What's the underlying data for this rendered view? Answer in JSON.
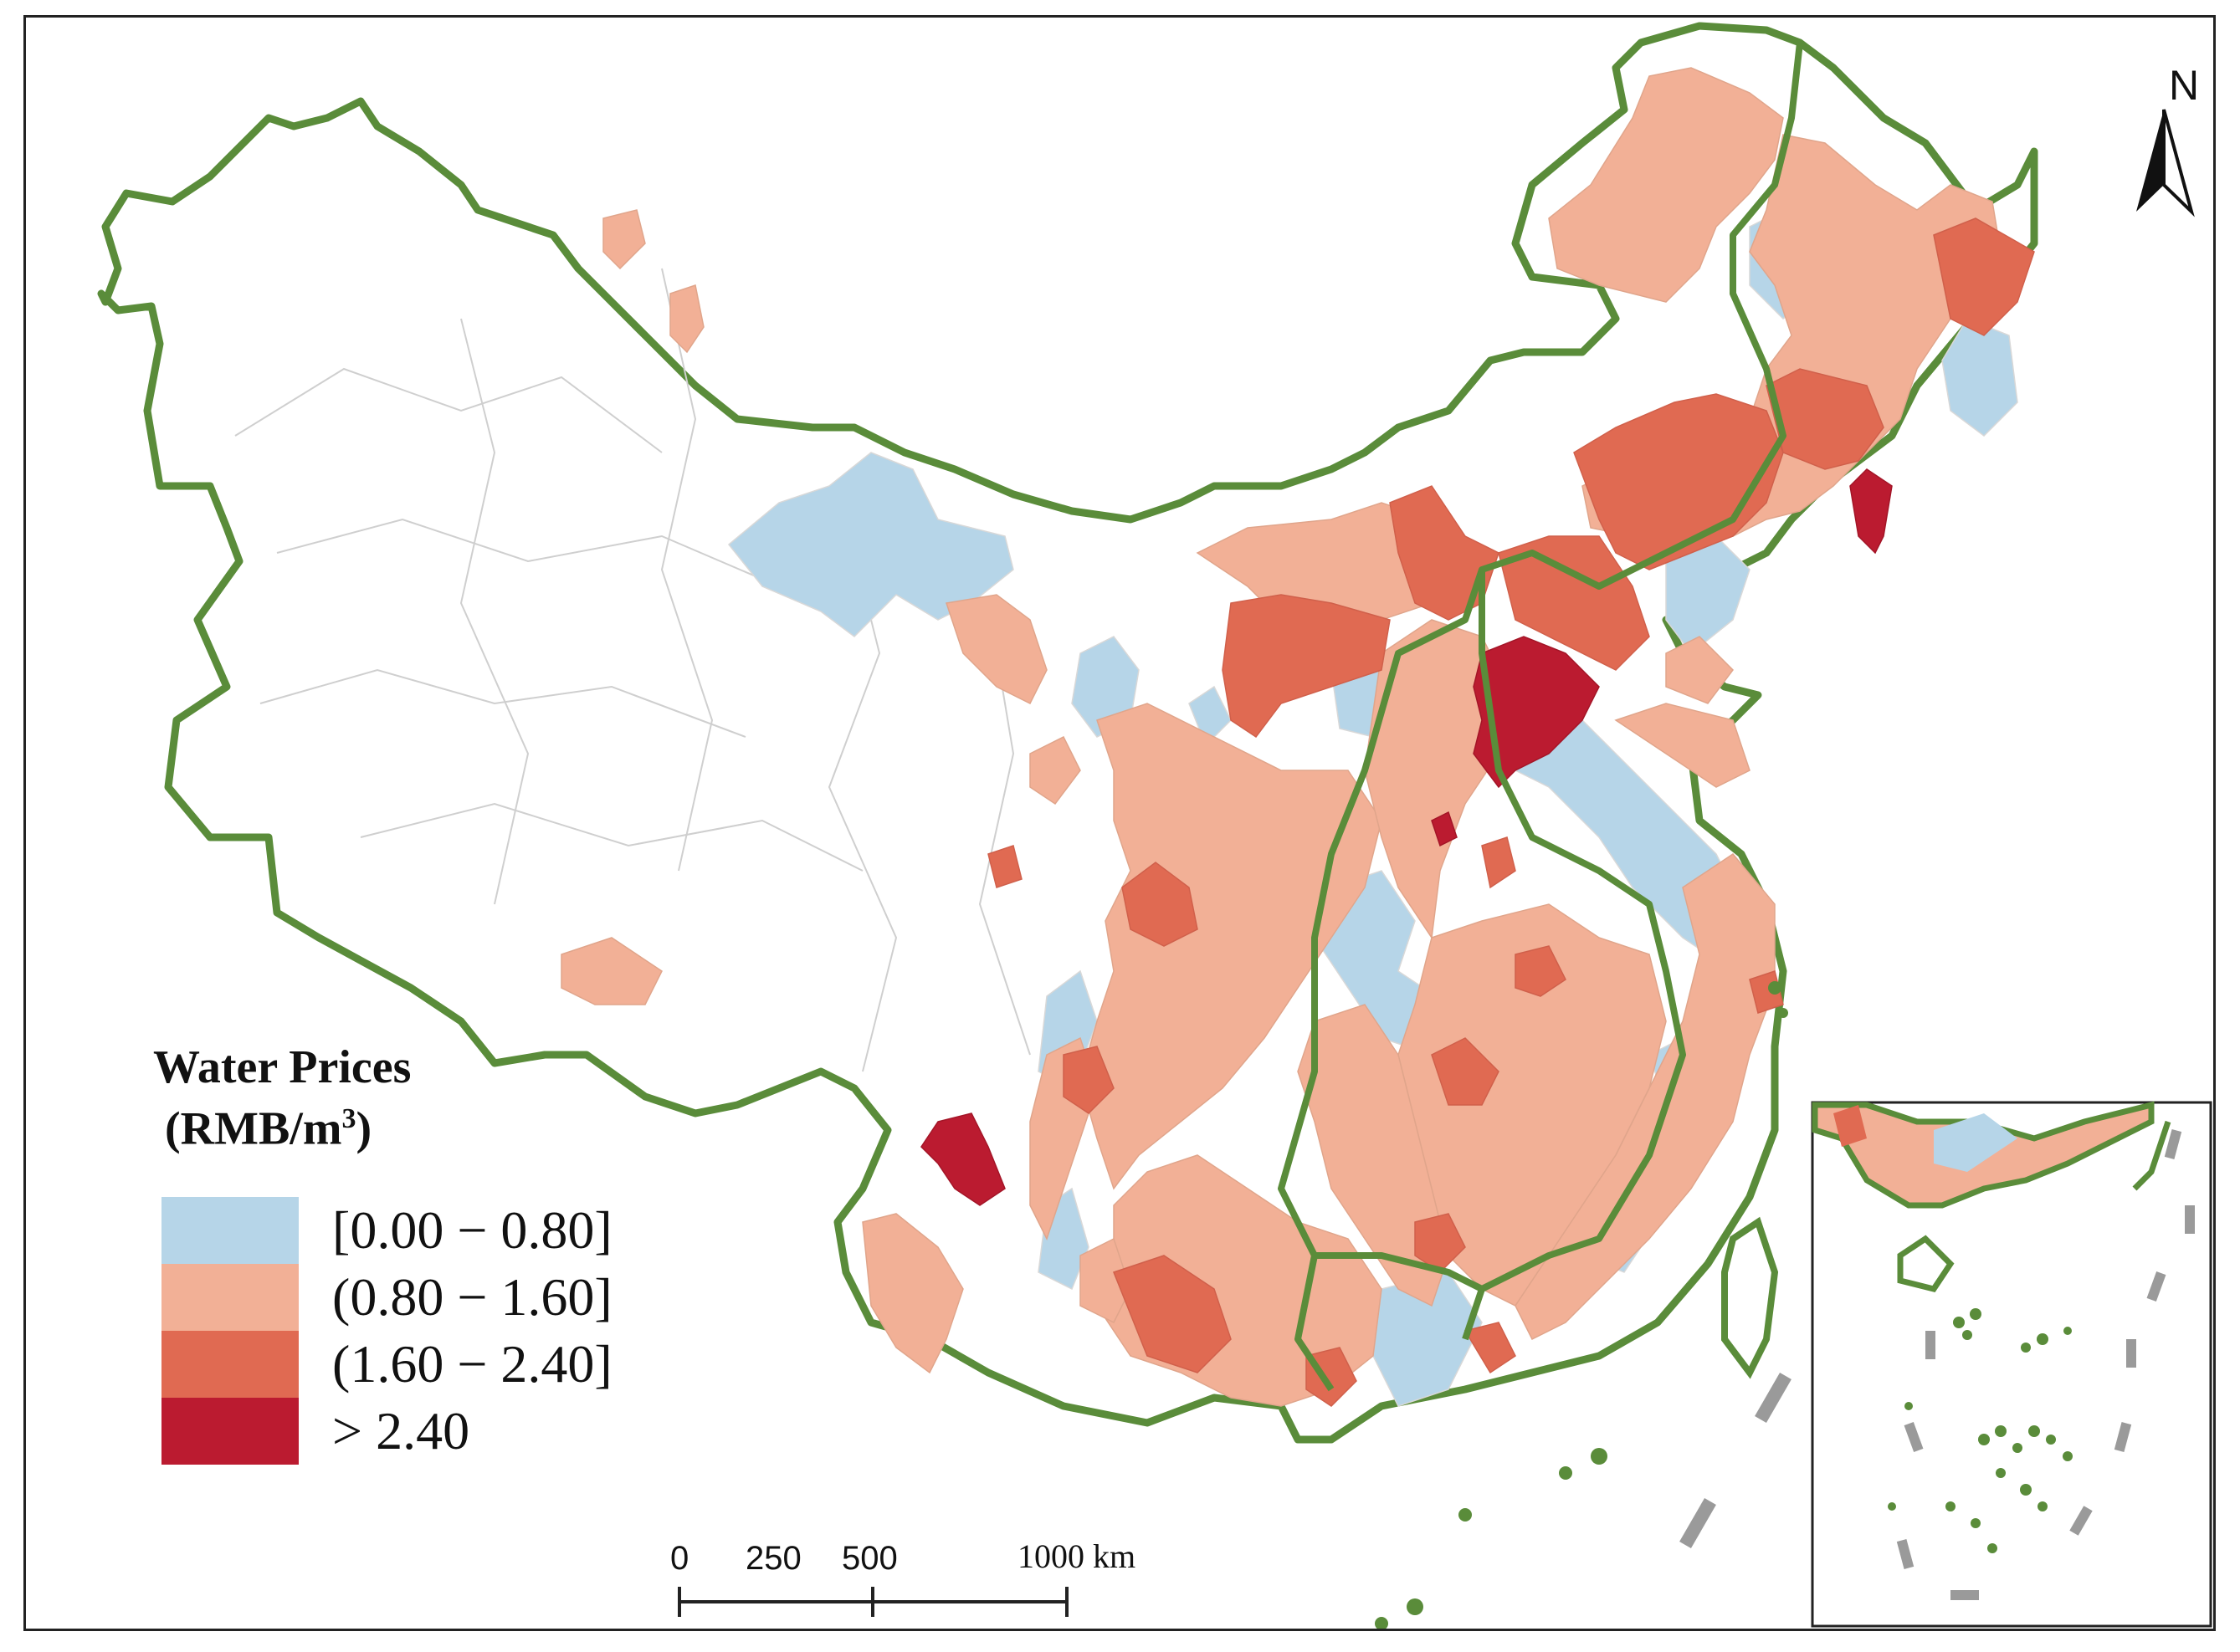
{
  "legend": {
    "title": "Water Prices",
    "unit_prefix": "(RMB/m",
    "unit_sup": "3",
    "unit_suffix": ")",
    "classes": [
      {
        "label": "[0.00 − 0.80]",
        "color": "#b6d5e8"
      },
      {
        "label": "(0.80 − 1.60]",
        "color": "#f2b096"
      },
      {
        "label": "(1.60 − 2.40]",
        "color": "#e06a52"
      },
      {
        "label": "> 2.40",
        "color": "#bb1b30"
      }
    ]
  },
  "scale_bar": {
    "ticks": [
      "0",
      "250",
      "500"
    ],
    "end_label": "1000 km"
  },
  "north_arrow": {
    "letter": "N",
    "icon": "north-arrow-icon"
  },
  "colors": {
    "boundary": "#5a8c3a",
    "no_data": "#ffffff",
    "inner_border": "#c8c8c8",
    "dash_line": "#9a9a9a"
  }
}
